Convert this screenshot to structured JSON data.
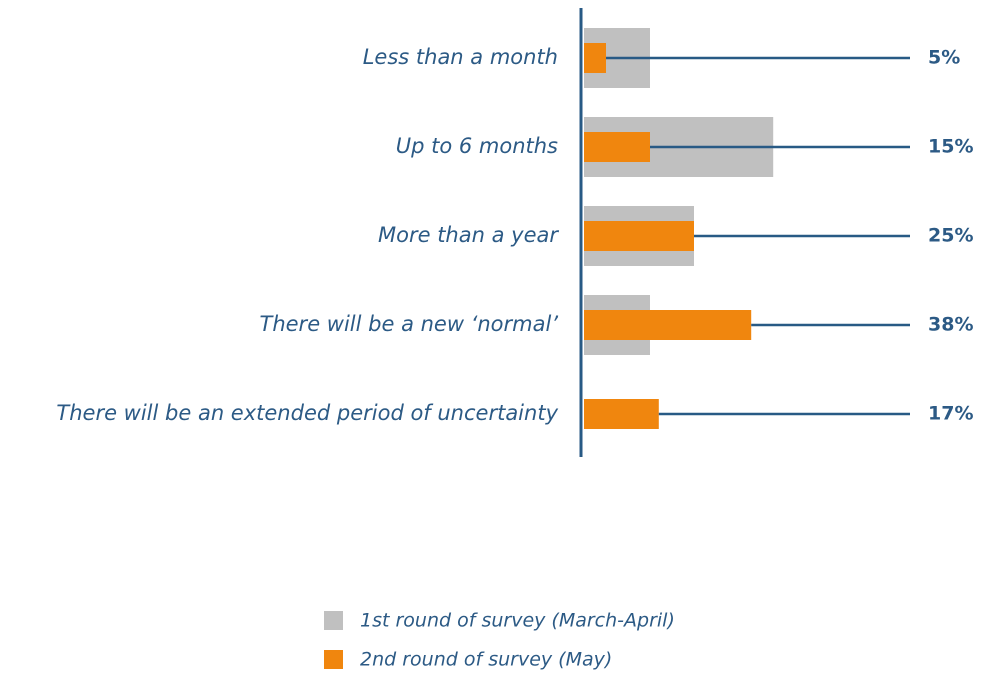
{
  "chart_data": {
    "type": "bar",
    "categories": [
      "Less than a month",
      "Up to 6 months",
      "More than a year",
      "There will be a new ‘normal’",
      "There will be an extended period of uncertainty"
    ],
    "series": [
      {
        "name": "1st round of survey (March-April)",
        "color": "#c0c0c0",
        "values": [
          15,
          43,
          25,
          15,
          null
        ]
      },
      {
        "name": "2nd round of survey (May)",
        "color": "#f0860e",
        "values": [
          5,
          15,
          25,
          38,
          17
        ],
        "value_labels": [
          "5%",
          "15%",
          "25%",
          "38%",
          "17%"
        ]
      }
    ]
  }
}
